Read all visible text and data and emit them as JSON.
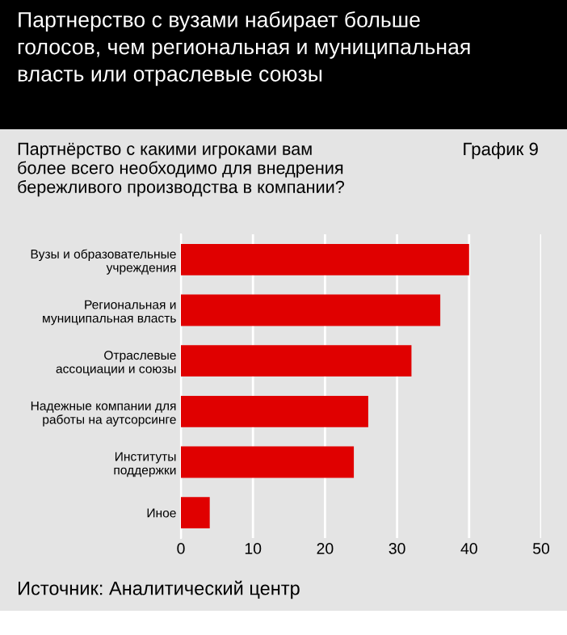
{
  "chart_data": {
    "type": "bar",
    "orientation": "horizontal",
    "title": "Партнерство с вузами набирает больше\nголосов, чем региональная и муниципальная\nвласть или отраслевые союзы",
    "subtitle": "Партнёрство с какими игроками вам\nболее всего необходимо для внедрения\nбережливого производства в компании?",
    "annotations": [
      "График 9",
      "Источник: Аналитический центр"
    ],
    "categories": [
      "Вузы и образовательные\nучреждения",
      "Региональная и\nмуниципальная власть",
      "Отраслевые\nассоциации и союзы",
      "Надежные компании для\nработы на аутсорсинге",
      "Институты\nподдержки",
      "Иное"
    ],
    "values": [
      40,
      36,
      32,
      26,
      24,
      4
    ],
    "color": "#e00000",
    "xlim": [
      0,
      50
    ],
    "xticks": [
      0,
      10,
      20,
      30,
      40,
      50
    ],
    "grid": "x"
  }
}
